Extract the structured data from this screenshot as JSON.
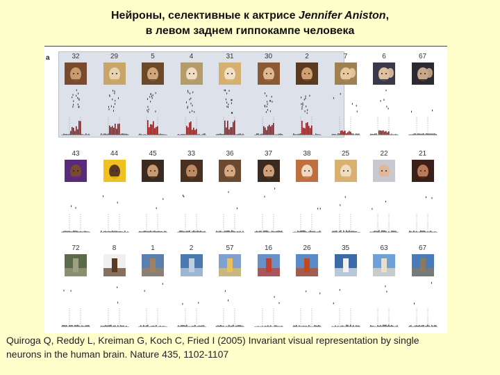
{
  "title": {
    "line1_prefix": "Нейроны, селективные к актрисе ",
    "line1_name": "Jennifer Aniston",
    "line1_suffix": ",",
    "line2": "в левом заднем гиппокампе человека"
  },
  "figure": {
    "panel_label": "a",
    "rows": [
      {
        "name": "aniston-row",
        "highlighted_count": 7,
        "cells": [
          {
            "label": "32",
            "icon": "face-aniston-icon",
            "response": "strong",
            "colors": [
              "#7a4a2e",
              "#c99b6d"
            ]
          },
          {
            "label": "29",
            "icon": "face-aniston-icon",
            "response": "strong",
            "colors": [
              "#c8a66a",
              "#e8d2b0"
            ]
          },
          {
            "label": "5",
            "icon": "face-aniston-icon",
            "response": "strong",
            "colors": [
              "#6b4a2a",
              "#d2a57a"
            ]
          },
          {
            "label": "4",
            "icon": "face-aniston-icon",
            "response": "strong",
            "colors": [
              "#b59a6a",
              "#f0dcc0"
            ]
          },
          {
            "label": "31",
            "icon": "face-aniston-icon",
            "response": "strong",
            "colors": [
              "#d6b070",
              "#f2e0c8"
            ]
          },
          {
            "label": "30",
            "icon": "face-aniston-icon",
            "response": "strong",
            "colors": [
              "#8a5a34",
              "#e0b890"
            ]
          },
          {
            "label": "2",
            "icon": "face-aniston-icon",
            "response": "strong",
            "colors": [
              "#5a3a20",
              "#d0a070"
            ]
          },
          {
            "label": "7",
            "icon": "face-couple-icon",
            "response": "weak",
            "colors": [
              "#a08050",
              "#e8c8a0"
            ]
          },
          {
            "label": "6",
            "icon": "face-couple-icon",
            "response": "weak",
            "colors": [
              "#3a3a4a",
              "#e0c0a0"
            ]
          },
          {
            "label": "67",
            "icon": "face-couple-icon",
            "response": "none",
            "colors": [
              "#2a2a30",
              "#c8a888"
            ]
          }
        ]
      },
      {
        "name": "faces-row",
        "highlighted_count": 0,
        "cells": [
          {
            "label": "43",
            "icon": "face-basketball-icon",
            "response": "none",
            "colors": [
              "#5a2a7a",
              "#7a4a30"
            ]
          },
          {
            "label": "44",
            "icon": "face-basketball-icon",
            "response": "none",
            "colors": [
              "#f0c020",
              "#5a3a20"
            ]
          },
          {
            "label": "45",
            "icon": "face-woman-icon",
            "response": "none",
            "colors": [
              "#3a2a20",
              "#c89a70"
            ]
          },
          {
            "label": "33",
            "icon": "face-woman-icon",
            "response": "none",
            "colors": [
              "#4a3020",
              "#c08a60"
            ]
          },
          {
            "label": "36",
            "icon": "face-woman-icon",
            "response": "none",
            "colors": [
              "#6a4a30",
              "#d8a880"
            ]
          },
          {
            "label": "37",
            "icon": "face-woman-icon",
            "response": "none",
            "colors": [
              "#3a2a20",
              "#d0a078"
            ]
          },
          {
            "label": "38",
            "icon": "face-woman-icon",
            "response": "none",
            "colors": [
              "#c07040",
              "#f0d8c0"
            ]
          },
          {
            "label": "25",
            "icon": "face-woman-icon",
            "response": "none",
            "colors": [
              "#d8b070",
              "#f0dcc0"
            ]
          },
          {
            "label": "22",
            "icon": "face-man-icon",
            "response": "none",
            "colors": [
              "#c8c8d0",
              "#e0b898"
            ]
          },
          {
            "label": "21",
            "icon": "face-woman-icon",
            "response": "none",
            "colors": [
              "#3a2018",
              "#b87a58"
            ]
          }
        ]
      },
      {
        "name": "objects-row",
        "highlighted_count": 0,
        "cells": [
          {
            "label": "72",
            "icon": "snake-icon",
            "response": "none",
            "colors": [
              "#5a6a4a",
              "#a0a080"
            ]
          },
          {
            "label": "8",
            "icon": "spider-icon",
            "response": "none",
            "colors": [
              "#f0f0f0",
              "#5a3a20"
            ]
          },
          {
            "label": "1",
            "icon": "building-icon",
            "response": "none",
            "colors": [
              "#5a80b0",
              "#a08060"
            ]
          },
          {
            "label": "2",
            "icon": "dolphin-icon",
            "response": "none",
            "colors": [
              "#4a7ab0",
              "#c0d0e0"
            ]
          },
          {
            "label": "57",
            "icon": "house-icon",
            "response": "none",
            "colors": [
              "#80a0d0",
              "#e8c060"
            ]
          },
          {
            "label": "16",
            "icon": "tower-icon",
            "response": "none",
            "colors": [
              "#6a90c8",
              "#c04030"
            ]
          },
          {
            "label": "26",
            "icon": "bridge-icon",
            "response": "none",
            "colors": [
              "#5a8ac8",
              "#c04a20"
            ]
          },
          {
            "label": "35",
            "icon": "opera-house-icon",
            "response": "none",
            "colors": [
              "#3a6aa8",
              "#f0f0f0"
            ]
          },
          {
            "label": "63",
            "icon": "leaning-tower-icon",
            "response": "none",
            "colors": [
              "#70a0d8",
              "#e8e0c8"
            ]
          },
          {
            "label": "67",
            "icon": "skyline-icon",
            "response": "none",
            "colors": [
              "#4a7ab8",
              "#8a7a60"
            ]
          }
        ]
      }
    ]
  },
  "citation": {
    "line1": "Quiroga Q, Reddy L, Kreiman G, Koch C, Fried I (2005) Invariant visual representation by single",
    "line2": "neurons in the human brain. Nature 435, 1102-1107"
  },
  "colors": {
    "background": "#ffffcc",
    "bar_response": "#8b1a1a",
    "bar_baseline": "#555555",
    "highlight": "#dde2ea"
  }
}
